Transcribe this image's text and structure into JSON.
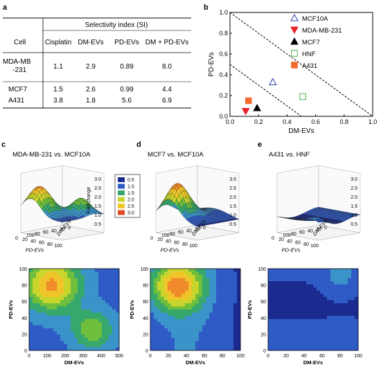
{
  "table": {
    "letter": "a",
    "head_cell": "Cell",
    "head_group": "Selectivity index (SI)",
    "head_cols": [
      "Cisplatin",
      "DM-EVs",
      "PD-EVs",
      "DM + PD-EVs"
    ],
    "rows": [
      {
        "cell_line1": "MDA-MB",
        "cell_line2": "-231",
        "values": [
          "1.1",
          "2.9",
          "0.89",
          "8.0"
        ]
      },
      {
        "cell_line1": "MCF7",
        "cell_line2": "",
        "values": [
          "1.5",
          "2.6",
          "0.99",
          "4.4"
        ]
      },
      {
        "cell_line1": "A431",
        "cell_line2": "",
        "values": [
          "3.8",
          "1.8",
          "5.6",
          "6.9"
        ]
      }
    ]
  },
  "chart_data": [
    {
      "type": "scatter",
      "letter": "b",
      "xlabel": "DM-EVs",
      "ylabel": "PD-EVs",
      "xlim": [
        0,
        1.0
      ],
      "ylim": [
        0,
        1.0
      ],
      "xticks": [
        "0.0",
        "0.2",
        "0.4",
        "0.6",
        "0.8",
        "1.0"
      ],
      "yticks": [
        "0.0",
        "0.2",
        "0.4",
        "0.6",
        "0.8",
        "1.0"
      ],
      "legend_position": "top-right",
      "series": [
        {
          "name": "MCF10A",
          "marker": "triangle-up-open",
          "color": "#2a3fa8",
          "x": 0.3,
          "y": 0.33
        },
        {
          "name": "MDA-MB-231",
          "marker": "triangle-down-filled",
          "color": "#e32227",
          "x": 0.11,
          "y": 0.05
        },
        {
          "name": "MCF7",
          "marker": "triangle-up-filled",
          "color": "#000000",
          "x": 0.19,
          "y": 0.08
        },
        {
          "name": "HNF",
          "marker": "square-open",
          "color": "#4caf50",
          "x": 0.51,
          "y": 0.19
        },
        {
          "name": "A431",
          "marker": "square-filled",
          "color": "#f26a2a",
          "x": 0.13,
          "y": 0.15
        }
      ],
      "lines": [
        {
          "style": "dashed",
          "from": [
            0,
            1.0
          ],
          "to": [
            1.0,
            0
          ]
        },
        {
          "style": "dashed",
          "from": [
            0,
            0.5
          ],
          "to": [
            0.5,
            0
          ]
        }
      ],
      "grid": false
    },
    {
      "type": "surface-3d",
      "letter": "c",
      "title": "MDA-MB-231 vs. MCF10A",
      "zlabel": "Fold change",
      "xlabel": "PD-EVs",
      "ylabel": "DM-EVs",
      "zticks": [
        "3.0",
        "2.5",
        "2.0",
        "1.5",
        "1.0",
        "0.5"
      ],
      "xticks": [
        "100",
        "80",
        "60",
        "40",
        "20",
        "0"
      ],
      "yticks": [
        "0",
        "20",
        "40",
        "60",
        "80",
        "100"
      ],
      "legend": [
        "0.5",
        "1.0",
        "1.5",
        "2.0",
        "2.5",
        "3.0"
      ]
    },
    {
      "type": "surface-3d",
      "letter": "d",
      "title": "MCF7 vs. MCF10A",
      "zticks": [
        "3.0",
        "2.5",
        "2.0",
        "1.5",
        "1.0",
        "0.5"
      ],
      "xlabel": "PD-EVs",
      "ylabel": "DM-EVs",
      "xticks": [
        "100",
        "80",
        "60",
        "40",
        "20",
        "0"
      ],
      "yticks": [
        "0",
        "20",
        "40",
        "60",
        "80",
        "100"
      ]
    },
    {
      "type": "surface-3d",
      "letter": "e",
      "title": "A431 vs. HNF",
      "zticks": [
        "3.0",
        "2.5",
        "2.0",
        "1.5",
        "1.0",
        "0.5"
      ],
      "xlabel": "PD-EVs",
      "ylabel": "DM-EVs",
      "xticks": [
        "100",
        "80",
        "60",
        "40",
        "20",
        "0"
      ],
      "yticks": [
        "0",
        "20",
        "40",
        "60",
        "80",
        "100"
      ]
    },
    {
      "type": "heatmap",
      "xlabel": "DM-EVs",
      "ylabel": "PD-EVs",
      "xticks": [
        "0",
        "20",
        "40",
        "60",
        "80",
        "100"
      ],
      "yticks": [
        "0",
        "20",
        "40",
        "60",
        "80",
        "100"
      ],
      "xticks_c": [
        "0",
        "100",
        "200",
        "300",
        "400",
        "500"
      ]
    }
  ],
  "colors": {
    "colormap": [
      "#1b2a8f",
      "#2f5bc6",
      "#3a93c9",
      "#36a86d",
      "#6fbe3c",
      "#c9d52c",
      "#f0c52a",
      "#f08a2a",
      "#e04a25"
    ]
  }
}
